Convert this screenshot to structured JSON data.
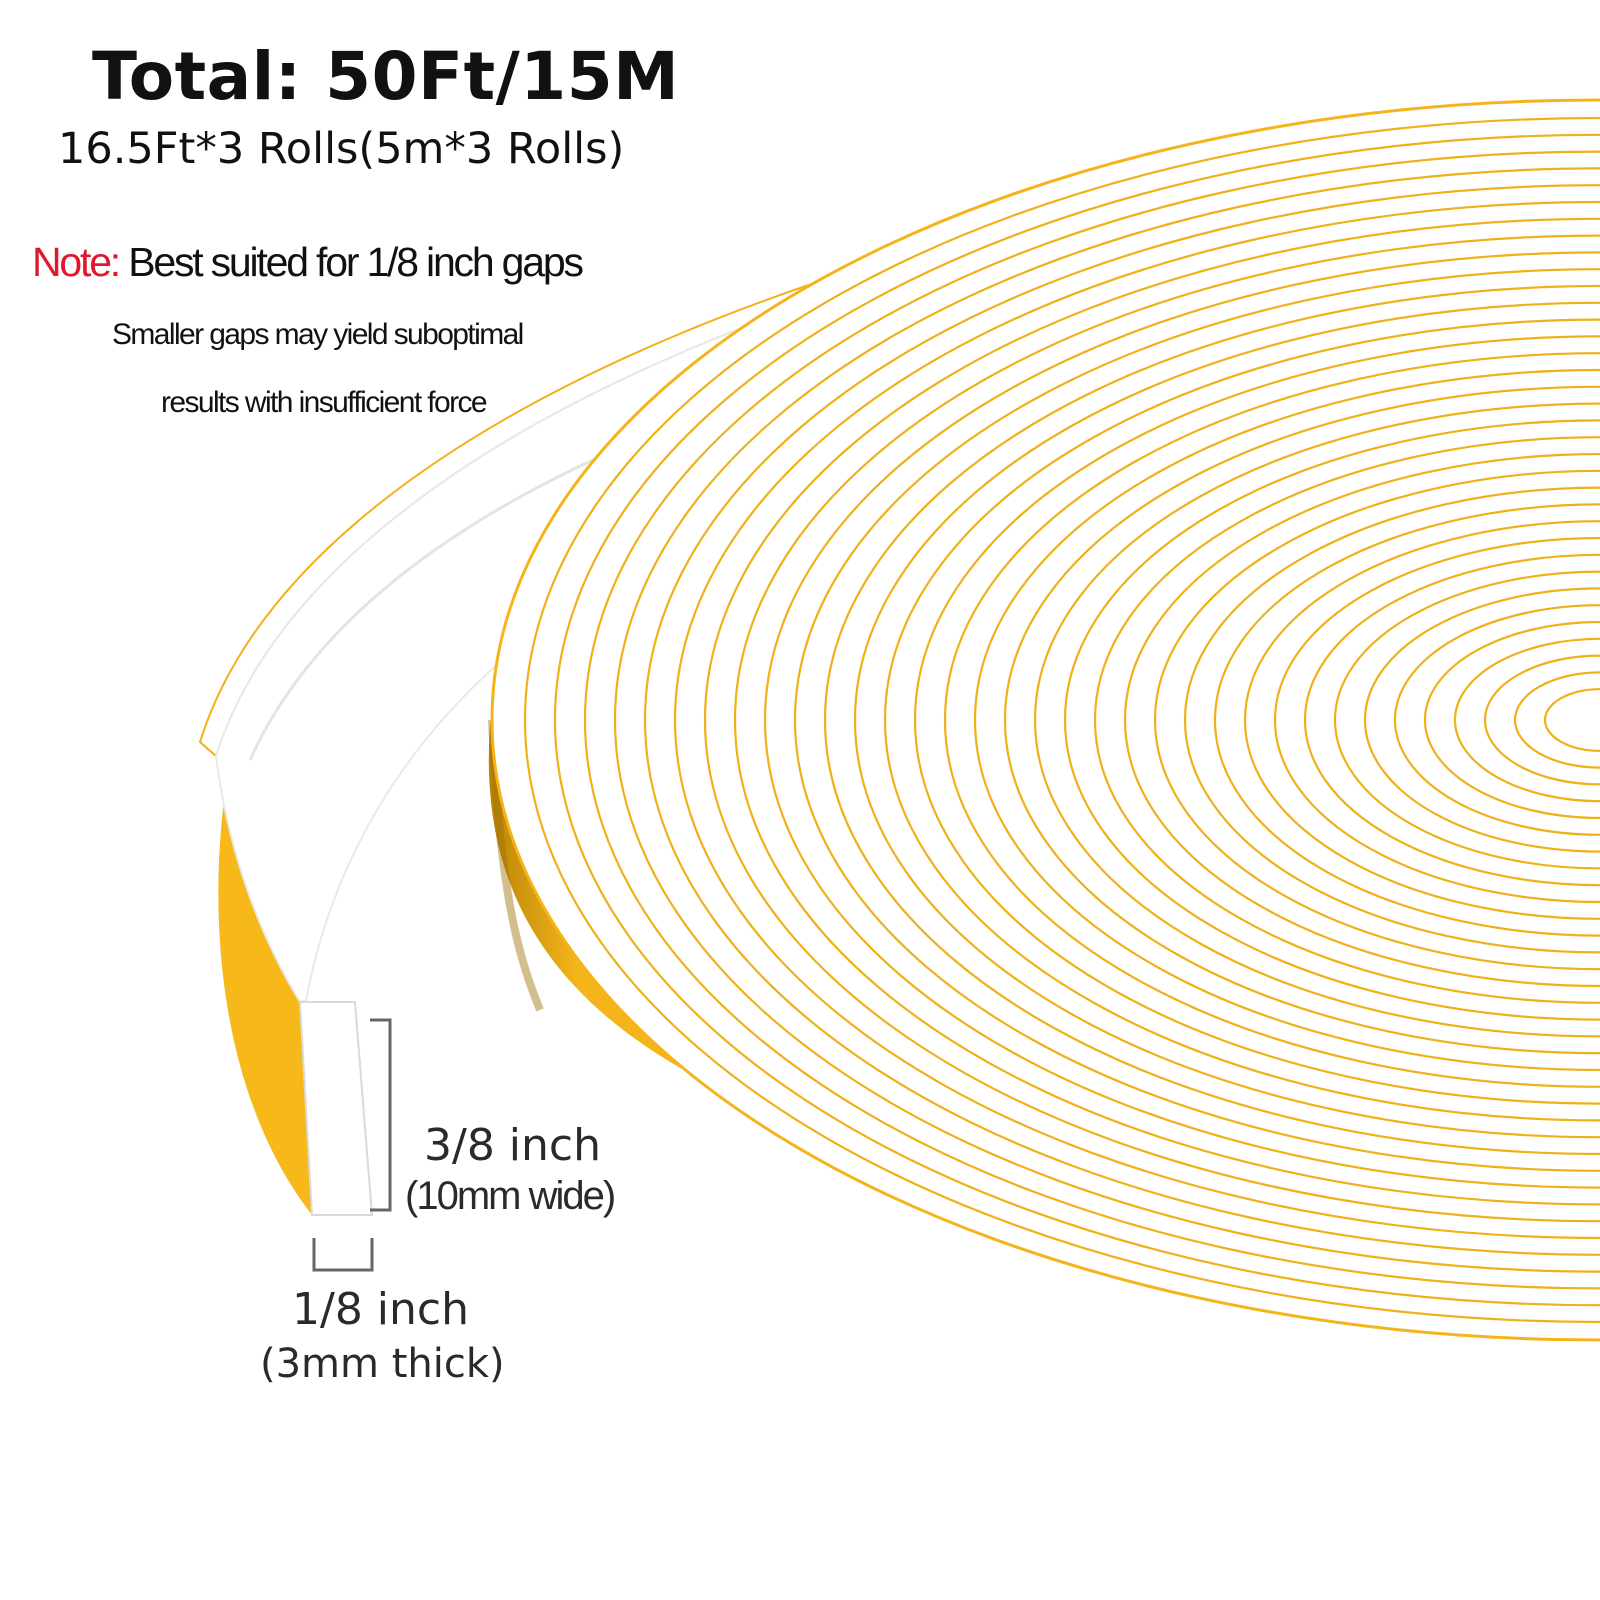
{
  "heading": {
    "total": "Total: 50Ft/15M",
    "rolls": "16.5Ft*3 Rolls(5m*3 Rolls)"
  },
  "note": {
    "label": "Note:",
    "main": " Best suited for 1/8 inch gaps",
    "line2": "Smaller gaps may yield suboptimal",
    "line3": "results with insufficient force",
    "label_color": "#e0182e"
  },
  "dimensions": {
    "width": "3/8 inch",
    "width_metric": "(10mm wide)",
    "thickness": "1/8 inch",
    "thickness_metric": "(3mm thick)"
  },
  "colors": {
    "tape_face": "#ffffff",
    "tape_side": "#f9bc1c",
    "tape_side_shadow": "#b07c08",
    "ring_lines": "#f0b018"
  }
}
